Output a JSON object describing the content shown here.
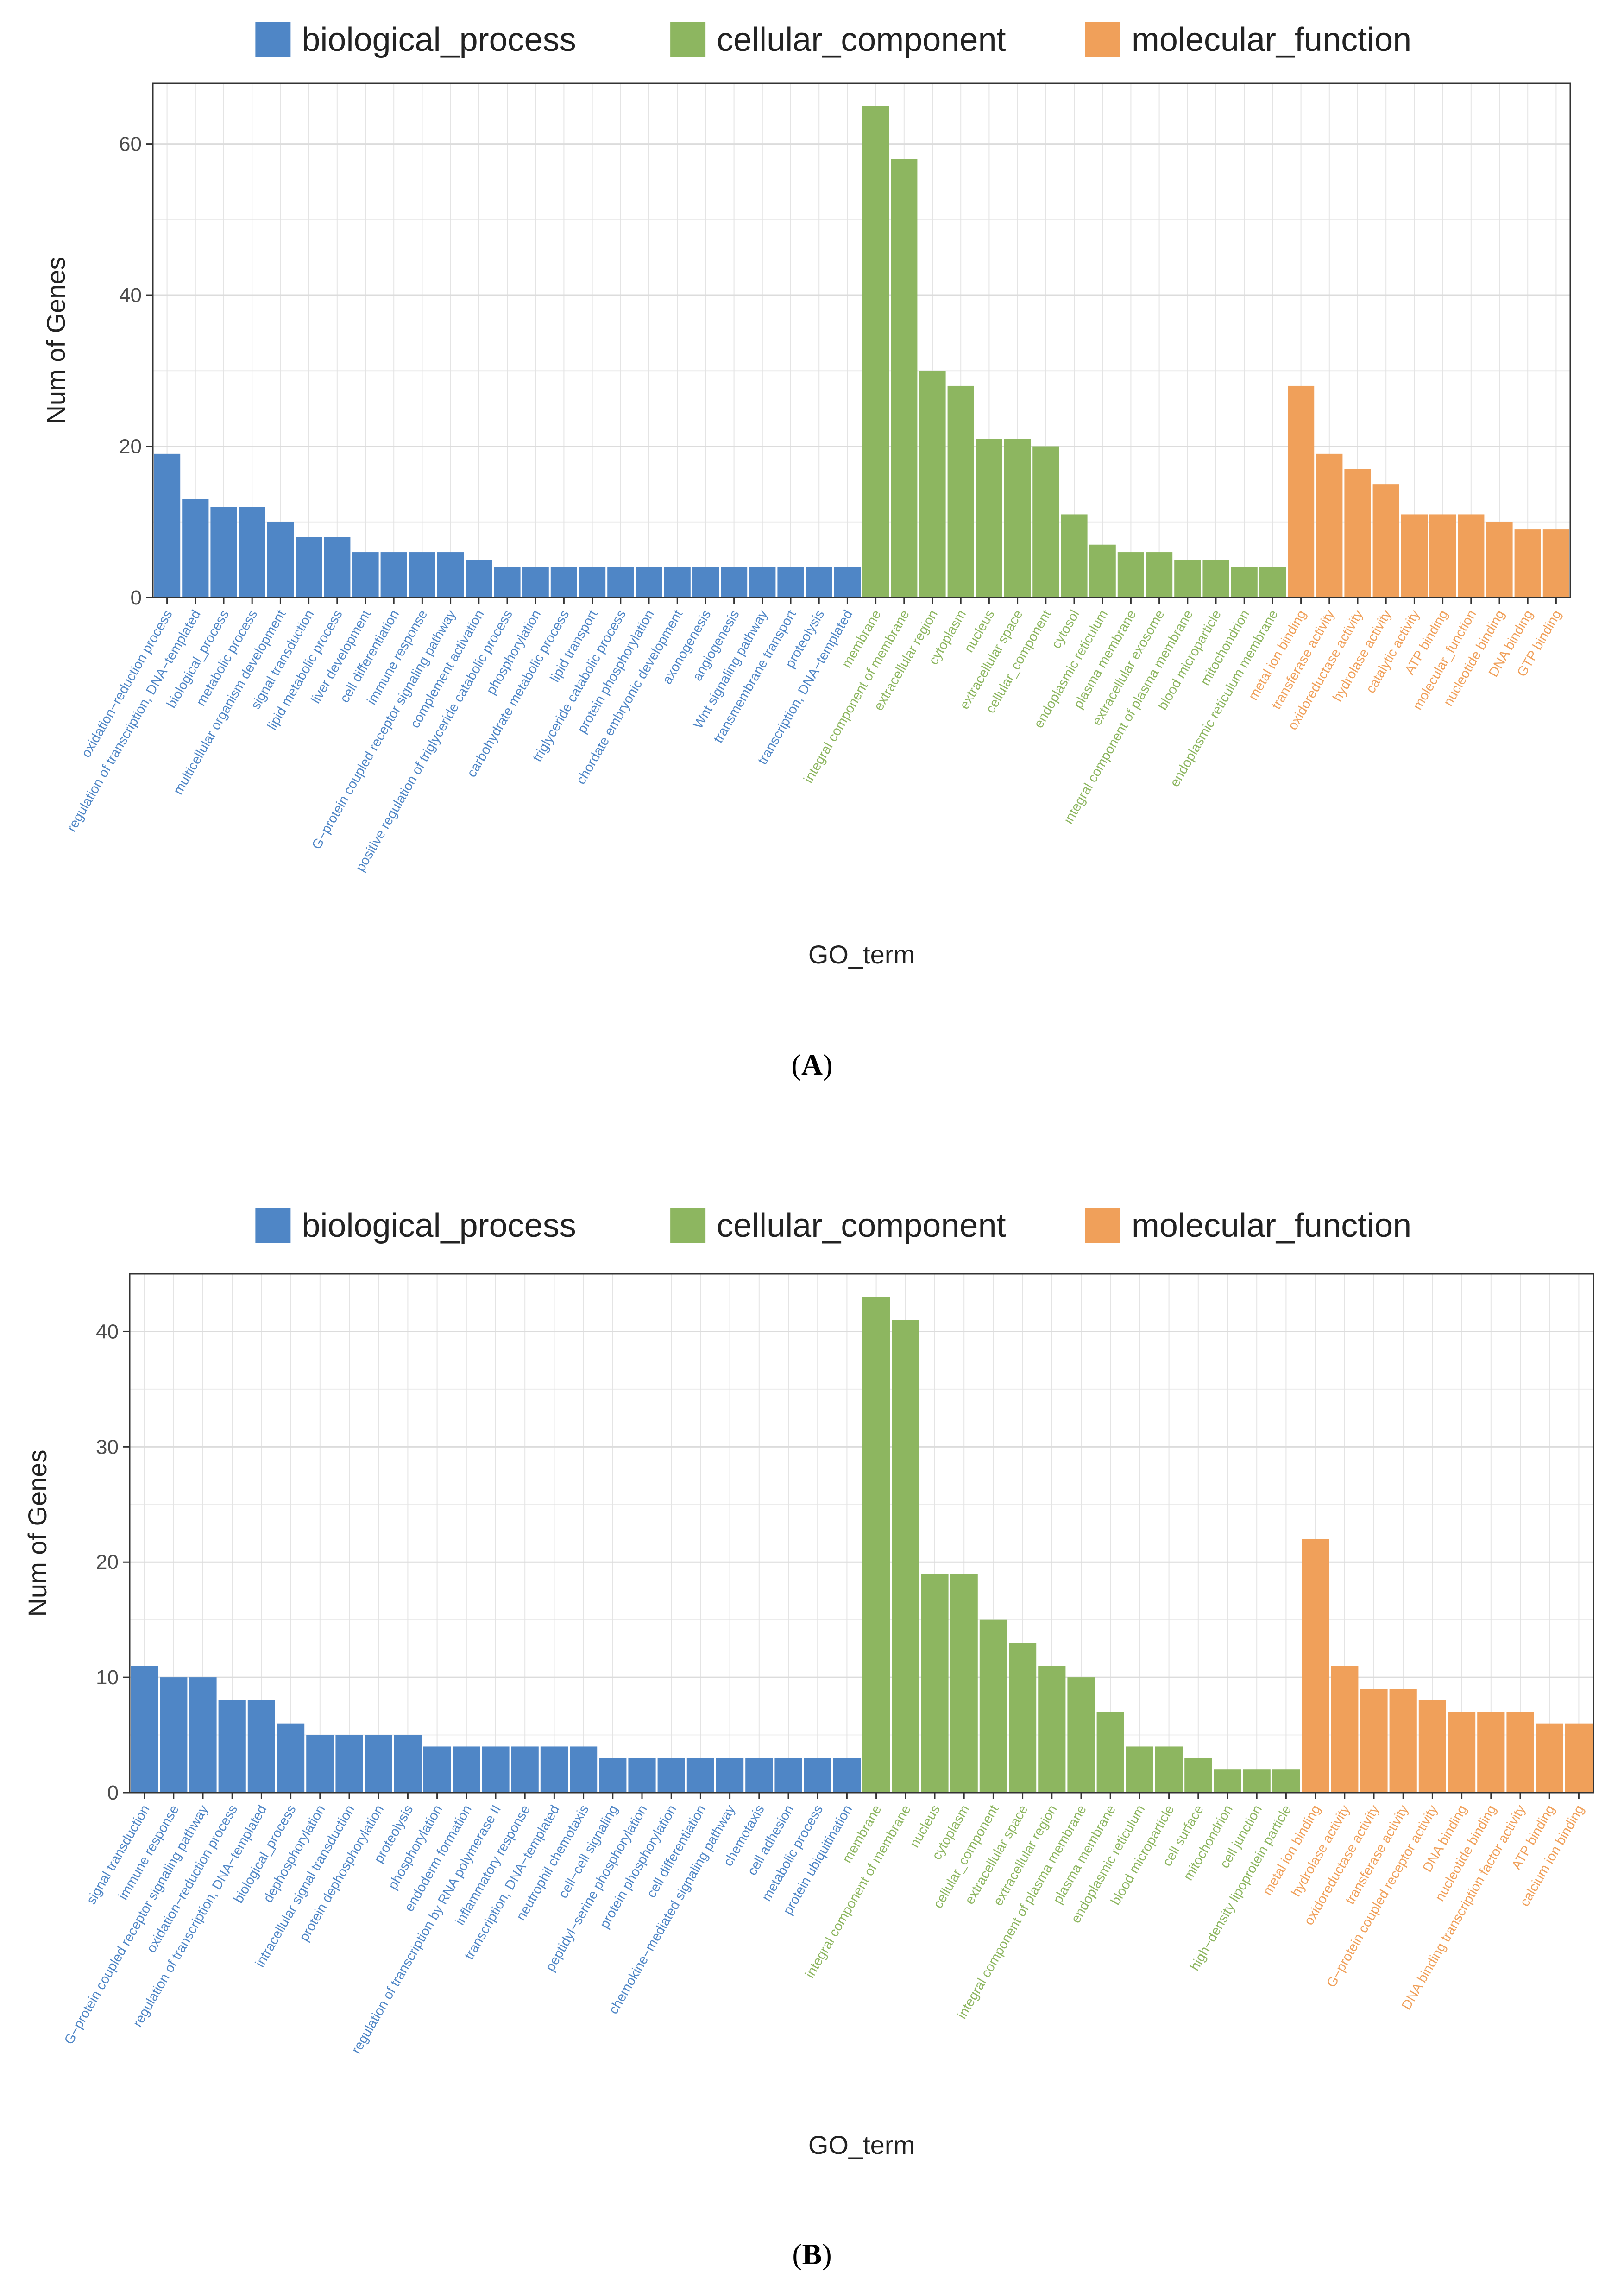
{
  "colors": {
    "biological_process": "#4f86c6",
    "cellular_component": "#8db660",
    "molecular_function": "#f0a05a"
  },
  "chart_data": [
    {
      "panel": "A",
      "caption_letter": "A",
      "type": "bar",
      "title": "",
      "xlabel": "GO_term",
      "ylabel": "Num of Genes",
      "ylim": [
        0,
        68
      ],
      "yticks": [
        0,
        20,
        40,
        60
      ],
      "grid": true,
      "legend": {
        "placement": "top",
        "entries": [
          "biological_process",
          "cellular_component",
          "molecular_function"
        ]
      },
      "series": [
        {
          "name": "biological_process",
          "categories": [
            "oxidation−reduction process",
            "regulation of transcription, DNA−templated",
            "biological_process",
            "metabolic process",
            "multicellular organism development",
            "signal transduction",
            "lipid metabolic process",
            "liver development",
            "cell differentiation",
            "immune response",
            "G−protein coupled receptor signaling pathway",
            "complement activation",
            "positive regulation of triglyceride catabolic process",
            "phosphorylation",
            "carbohydrate metabolic process",
            "lipid transport",
            "triglyceride catabolic process",
            "protein phosphorylation",
            "chordate embryonic development",
            "axonogenesis",
            "angiogenesis",
            "Wnt signaling pathway",
            "transmembrane transport",
            "proteolysis",
            "transcription, DNA−templated"
          ],
          "values": [
            19,
            13,
            12,
            12,
            10,
            8,
            8,
            6,
            6,
            6,
            6,
            5,
            4,
            4,
            4,
            4,
            4,
            4,
            4,
            4,
            4,
            4,
            4,
            4,
            4
          ]
        },
        {
          "name": "cellular_component",
          "categories": [
            "membrane",
            "integral component of membrane",
            "extracellular region",
            "cytoplasm",
            "nucleus",
            "extracellular space",
            "cellular_component",
            "cytosol",
            "endoplasmic reticulum",
            "plasma membrane",
            "extracellular exosome",
            "integral component of plasma membrane",
            "blood microparticle",
            "mitochondrion",
            "endoplasmic reticulum membrane"
          ],
          "values": [
            65,
            58,
            30,
            28,
            21,
            21,
            20,
            11,
            7,
            6,
            6,
            5,
            5,
            4,
            4
          ]
        },
        {
          "name": "molecular_function",
          "categories": [
            "metal ion binding",
            "transferase activity",
            "oxidoreductase activity",
            "hydrolase activity",
            "catalytic activity",
            "ATP binding",
            "molecular_function",
            "nucleotide binding",
            "DNA binding",
            "GTP binding"
          ],
          "values": [
            28,
            19,
            17,
            15,
            11,
            11,
            11,
            10,
            9,
            9
          ]
        }
      ]
    },
    {
      "panel": "B",
      "caption_letter": "B",
      "type": "bar",
      "title": "",
      "xlabel": "GO_term",
      "ylabel": "Num of Genes",
      "ylim": [
        0,
        45
      ],
      "yticks": [
        0,
        10,
        20,
        30,
        40
      ],
      "grid": true,
      "legend": {
        "placement": "top",
        "entries": [
          "biological_process",
          "cellular_component",
          "molecular_function"
        ]
      },
      "series": [
        {
          "name": "biological_process",
          "categories": [
            "signal transduction",
            "immune response",
            "G−protein coupled receptor signaling pathway",
            "oxidation−reduction process",
            "regulation of transcription, DNA−templated",
            "biological_process",
            "dephosphorylation",
            "intracellular signal transduction",
            "protein dephosphorylation",
            "proteolysis",
            "phosphorylation",
            "endoderm formation",
            "regulation of transcription by RNA polymerase II",
            "inflammatory response",
            "transcription, DNA−templated",
            "neutrophil chemotaxis",
            "cell−cell signaling",
            "peptidyl−serine phosphorylation",
            "protein phosphorylation",
            "cell differentiation",
            "chemokine−mediated signaling pathway",
            "chemotaxis",
            "cell adhesion",
            "metabolic process",
            "protein ubiquitination"
          ],
          "values": [
            11,
            10,
            10,
            8,
            8,
            6,
            5,
            5,
            5,
            5,
            4,
            4,
            4,
            4,
            4,
            4,
            3,
            3,
            3,
            3,
            3,
            3,
            3,
            3,
            3
          ]
        },
        {
          "name": "cellular_component",
          "categories": [
            "membrane",
            "integral component of membrane",
            "nucleus",
            "cytoplasm",
            "cellular_component",
            "extracellular space",
            "extracellular region",
            "integral component of plasma membrane",
            "plasma membrane",
            "endoplasmic reticulum",
            "blood microparticle",
            "cell surface",
            "mitochondrion",
            "cell junction",
            "high−density lipoprotein particle"
          ],
          "values": [
            43,
            41,
            19,
            19,
            15,
            13,
            11,
            10,
            7,
            4,
            4,
            3,
            2,
            2,
            2
          ]
        },
        {
          "name": "molecular_function",
          "categories": [
            "metal ion binding",
            "hydrolase activity",
            "oxidoreductase activity",
            "transferase activity",
            "G−protein coupled receptor activity",
            "DNA binding",
            "nucleotide binding",
            "DNA binding transcription factor activity",
            "ATP binding",
            "calcium ion binding"
          ],
          "values": [
            22,
            11,
            9,
            9,
            8,
            7,
            7,
            7,
            6,
            6
          ]
        }
      ]
    }
  ]
}
